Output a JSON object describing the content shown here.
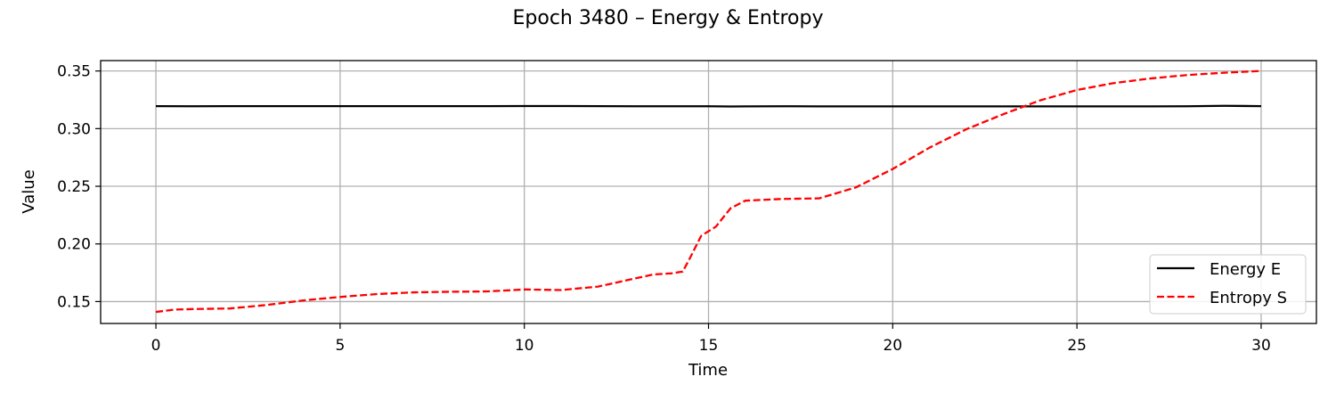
{
  "chart_data": {
    "type": "line",
    "title": "Epoch 3480 – Energy & Entropy",
    "xlabel": "Time",
    "ylabel": "Value",
    "xlim": [
      -1.5,
      31.5
    ],
    "ylim": [
      0.131,
      0.359
    ],
    "xticks": [
      0,
      5,
      10,
      15,
      20,
      25,
      30
    ],
    "xtick_labels": [
      "0",
      "5",
      "10",
      "15",
      "20",
      "25",
      "30"
    ],
    "yticks": [
      0.15,
      0.2,
      0.25,
      0.3,
      0.35
    ],
    "ytick_labels": [
      "0.15",
      "0.20",
      "0.25",
      "0.30",
      "0.35"
    ],
    "grid": true,
    "legend_position": "lower-right",
    "series": [
      {
        "name": "Energy E",
        "color": "#000000",
        "style": "solid",
        "x": [
          0,
          1,
          2,
          3,
          4,
          5,
          6,
          7,
          8,
          9,
          10,
          11,
          12,
          13,
          14,
          15,
          15.6,
          16,
          17,
          18,
          19,
          20,
          21,
          22,
          23,
          24,
          25,
          26,
          27,
          28,
          29,
          30
        ],
        "values": [
          0.3195,
          0.3194,
          0.3195,
          0.3195,
          0.3195,
          0.3195,
          0.3195,
          0.3195,
          0.3195,
          0.3195,
          0.3196,
          0.3196,
          0.3195,
          0.3194,
          0.3194,
          0.3194,
          0.3192,
          0.3193,
          0.3194,
          0.3193,
          0.3193,
          0.3193,
          0.3193,
          0.3193,
          0.3193,
          0.3193,
          0.3193,
          0.3193,
          0.3193,
          0.3194,
          0.3198,
          0.3195
        ]
      },
      {
        "name": "Entropy S",
        "color": "#ff0000",
        "style": "dashed",
        "x": [
          0,
          0.5,
          1,
          2,
          3,
          4,
          5,
          6,
          7,
          8,
          9,
          10,
          11,
          12,
          13,
          13.5,
          14,
          14.3,
          14.5,
          14.8,
          15.2,
          15.6,
          16,
          17,
          18,
          19,
          20,
          21,
          22,
          23,
          24,
          25,
          26,
          27,
          28,
          29,
          30
        ],
        "values": [
          0.141,
          0.143,
          0.1435,
          0.144,
          0.147,
          0.151,
          0.154,
          0.1565,
          0.158,
          0.1585,
          0.1588,
          0.1605,
          0.16,
          0.163,
          0.17,
          0.1735,
          0.1745,
          0.176,
          0.188,
          0.207,
          0.215,
          0.231,
          0.2375,
          0.239,
          0.2395,
          0.249,
          0.265,
          0.2835,
          0.2995,
          0.3125,
          0.3245,
          0.3335,
          0.3395,
          0.3435,
          0.3465,
          0.3485,
          0.35
        ]
      }
    ]
  }
}
